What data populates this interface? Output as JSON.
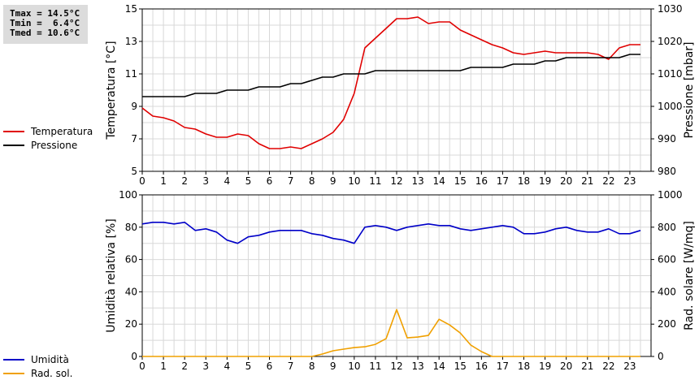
{
  "stats": {
    "tmax": "Tmax = 14.5°C",
    "tmin": "Tmin =  6.4°C",
    "tmed": "Tmed = 10.6°C"
  },
  "colors": {
    "temperature": "#e00000",
    "pressure": "#000000",
    "humidity": "#0000c8",
    "radiation": "#f0a000",
    "grid": "#d8d8d8"
  },
  "chart_data": [
    {
      "type": "line",
      "x_ticks": [
        "0",
        "1",
        "2",
        "3",
        "4",
        "5",
        "6",
        "7",
        "8",
        "9",
        "10",
        "11",
        "12",
        "13",
        "14",
        "15",
        "16",
        "17",
        "18",
        "19",
        "20",
        "21",
        "22",
        "23"
      ],
      "xlim": [
        0,
        24
      ],
      "ylabel_left": "Temperatura [°C]",
      "ylabel_right": "Pressione [mbar]",
      "ylim_left": [
        5,
        15
      ],
      "ylim_right": [
        980,
        1030
      ],
      "yticks_left": [
        "5",
        "7",
        "9",
        "11",
        "13",
        "15"
      ],
      "yticks_right": [
        "980",
        "990",
        "1000",
        "1010",
        "1020",
        "1030"
      ],
      "grid": true,
      "legend": [
        "Temperatura",
        "Pressione"
      ],
      "series": [
        {
          "name": "Temperatura",
          "axis": "left",
          "x": [
            0,
            0.5,
            1,
            1.5,
            2,
            2.5,
            3,
            3.5,
            4,
            4.5,
            5,
            5.5,
            6,
            6.5,
            7,
            7.5,
            8,
            8.5,
            9,
            9.5,
            10,
            10.5,
            11,
            11.5,
            12,
            12.5,
            13,
            13.5,
            14,
            14.5,
            15,
            15.5,
            16,
            16.5,
            17,
            17.5,
            18,
            18.5,
            19,
            19.5,
            20,
            20.5,
            21,
            21.5,
            22,
            22.5,
            23,
            23.5
          ],
          "values": [
            8.9,
            8.4,
            8.3,
            8.1,
            7.7,
            7.6,
            7.3,
            7.1,
            7.1,
            7.3,
            7.2,
            6.7,
            6.4,
            6.4,
            6.5,
            6.4,
            6.7,
            7.0,
            7.4,
            8.2,
            9.8,
            12.6,
            13.2,
            13.8,
            14.4,
            14.4,
            14.5,
            14.1,
            14.2,
            14.2,
            13.7,
            13.4,
            13.1,
            12.8,
            12.6,
            12.3,
            12.2,
            12.3,
            12.4,
            12.3,
            12.3,
            12.3,
            12.3,
            12.2,
            11.9,
            12.6,
            12.8,
            12.8
          ]
        },
        {
          "name": "Pressione",
          "axis": "right",
          "x": [
            0,
            0.5,
            1,
            1.5,
            2,
            2.5,
            3,
            3.5,
            4,
            4.5,
            5,
            5.5,
            6,
            6.5,
            7,
            7.5,
            8,
            8.5,
            9,
            9.5,
            10,
            10.5,
            11,
            11.5,
            12,
            12.5,
            13,
            13.5,
            14,
            14.5,
            15,
            15.5,
            16,
            16.5,
            17,
            17.5,
            18,
            18.5,
            19,
            19.5,
            20,
            20.5,
            21,
            21.5,
            22,
            22.5,
            23,
            23.5
          ],
          "values": [
            1003,
            1003,
            1003,
            1003,
            1003,
            1004,
            1004,
            1004,
            1005,
            1005,
            1005,
            1006,
            1006,
            1006,
            1007,
            1007,
            1008,
            1009,
            1009,
            1010,
            1010,
            1010,
            1011,
            1011,
            1011,
            1011,
            1011,
            1011,
            1011,
            1011,
            1011,
            1012,
            1012,
            1012,
            1012,
            1013,
            1013,
            1013,
            1014,
            1014,
            1015,
            1015,
            1015,
            1015,
            1015,
            1015,
            1016,
            1016
          ]
        }
      ]
    },
    {
      "type": "line",
      "x_ticks": [
        "0",
        "1",
        "2",
        "3",
        "4",
        "5",
        "6",
        "7",
        "8",
        "9",
        "10",
        "11",
        "12",
        "13",
        "14",
        "15",
        "16",
        "17",
        "18",
        "19",
        "20",
        "21",
        "22",
        "23"
      ],
      "xlim": [
        0,
        24
      ],
      "ylabel_left": "Umidità relativa [%]",
      "ylabel_right": "Rad. solare [W/mq]",
      "ylim_left": [
        0,
        100
      ],
      "ylim_right": [
        0,
        1000
      ],
      "yticks_left": [
        "0",
        "20",
        "40",
        "60",
        "80",
        "100"
      ],
      "yticks_right": [
        "0",
        "200",
        "400",
        "600",
        "800",
        "1000"
      ],
      "grid": true,
      "legend": [
        "Umidità",
        "Rad. sol."
      ],
      "series": [
        {
          "name": "Umidità",
          "axis": "left",
          "x": [
            0,
            0.5,
            1,
            1.5,
            2,
            2.5,
            3,
            3.5,
            4,
            4.5,
            5,
            5.5,
            6,
            6.5,
            7,
            7.5,
            8,
            8.5,
            9,
            9.5,
            10,
            10.5,
            11,
            11.5,
            12,
            12.5,
            13,
            13.5,
            14,
            14.5,
            15,
            15.5,
            16,
            16.5,
            17,
            17.5,
            18,
            18.5,
            19,
            19.5,
            20,
            20.5,
            21,
            21.5,
            22,
            22.5,
            23,
            23.5
          ],
          "values": [
            82,
            83,
            83,
            82,
            83,
            78,
            79,
            77,
            72,
            70,
            74,
            75,
            77,
            78,
            78,
            78,
            76,
            75,
            73,
            72,
            70,
            80,
            81,
            80,
            78,
            80,
            81,
            82,
            81,
            81,
            79,
            78,
            79,
            80,
            81,
            80,
            76,
            76,
            77,
            79,
            80,
            78,
            77,
            77,
            79,
            76,
            76,
            78
          ]
        },
        {
          "name": "Rad. sol.",
          "axis": "right",
          "x": [
            0,
            1,
            2,
            3,
            4,
            5,
            6,
            7,
            8,
            8.5,
            9,
            9.5,
            10,
            10.5,
            11,
            11.5,
            12,
            12.5,
            13,
            13.5,
            14,
            14.5,
            15,
            15.5,
            16,
            16.5,
            17,
            18,
            19,
            20,
            21,
            22,
            23,
            23.5
          ],
          "values": [
            0,
            0,
            0,
            0,
            0,
            0,
            0,
            0,
            0,
            15,
            35,
            45,
            55,
            60,
            75,
            110,
            290,
            115,
            120,
            130,
            230,
            195,
            145,
            70,
            30,
            0,
            0,
            0,
            0,
            0,
            0,
            0,
            0,
            0
          ]
        }
      ]
    }
  ]
}
